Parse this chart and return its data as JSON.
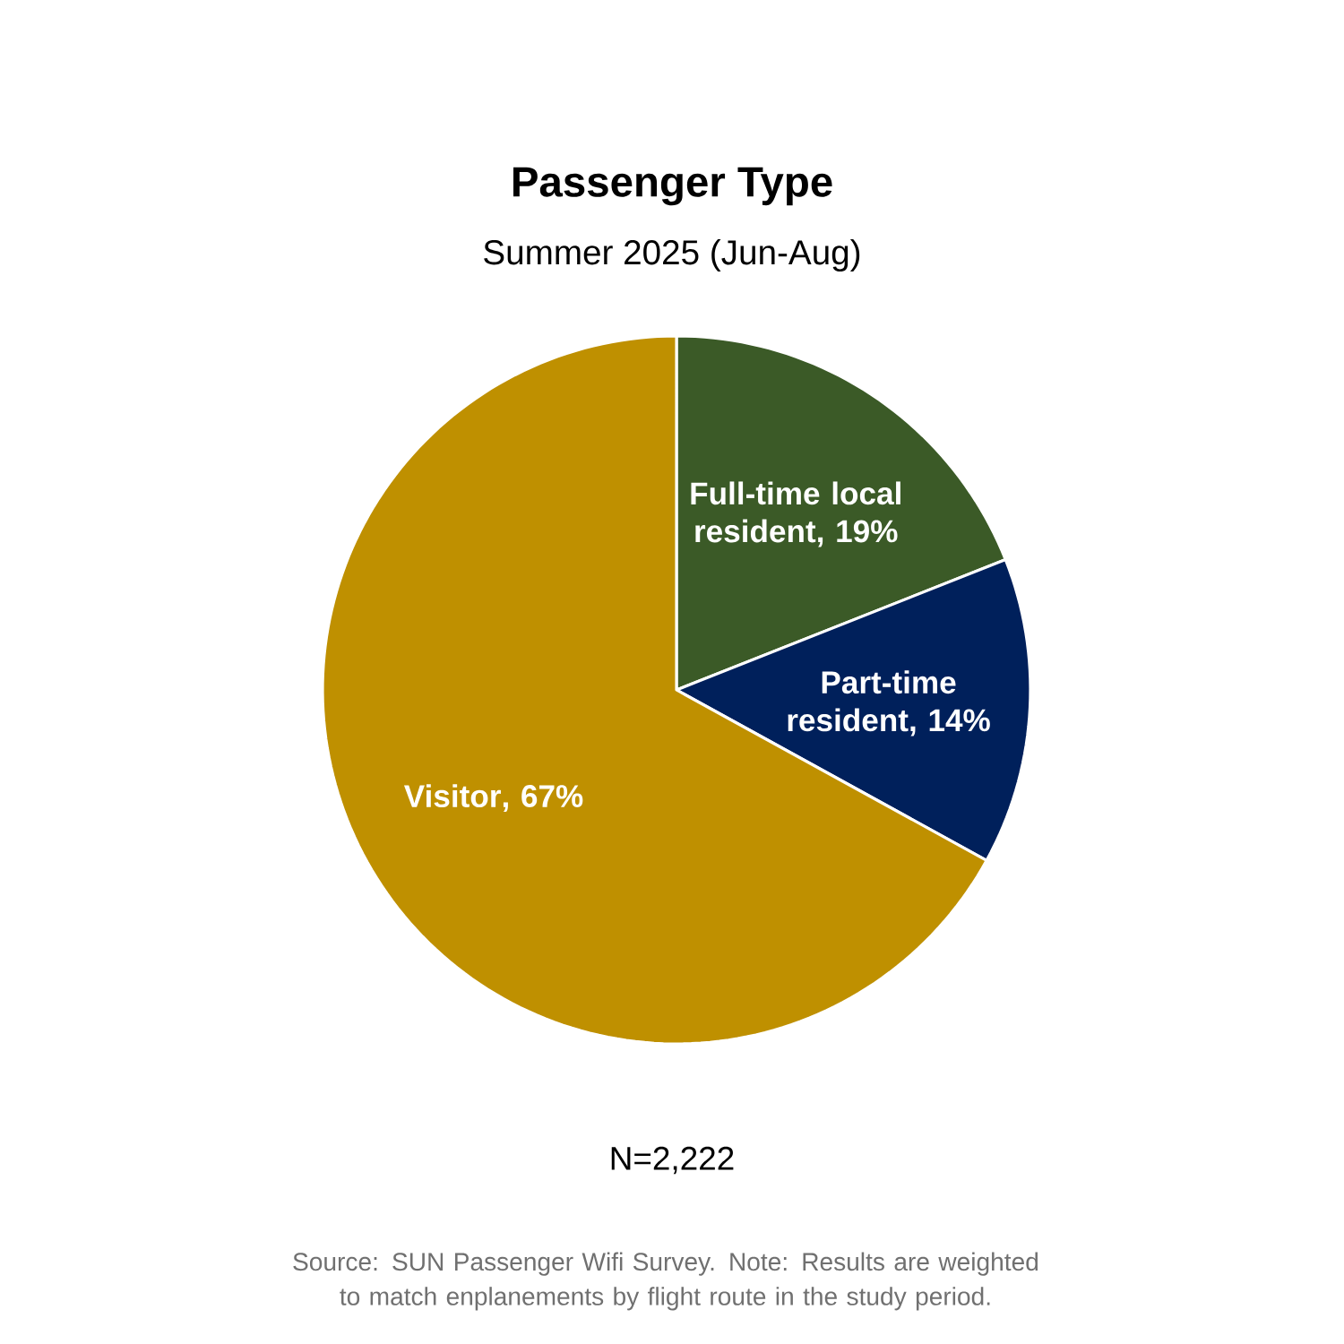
{
  "chart_data": {
    "type": "pie",
    "title": "Passenger Type",
    "subtitle": "Summer 2025 (Jun-Aug)",
    "categories": [
      "Full-time local resident",
      "Part-time resident",
      "Visitor"
    ],
    "values": [
      19,
      14,
      67
    ],
    "value_labels": [
      ", 19%",
      ", 14%",
      ", 67%"
    ],
    "colors": [
      "#3b5a27",
      "#00205b",
      "#bf9000"
    ],
    "annotations": [
      "N=2,222",
      "Source: SUN Passenger Wifi Survey. Note: Results are weighted to match enplanements by flight route in the study period."
    ]
  }
}
